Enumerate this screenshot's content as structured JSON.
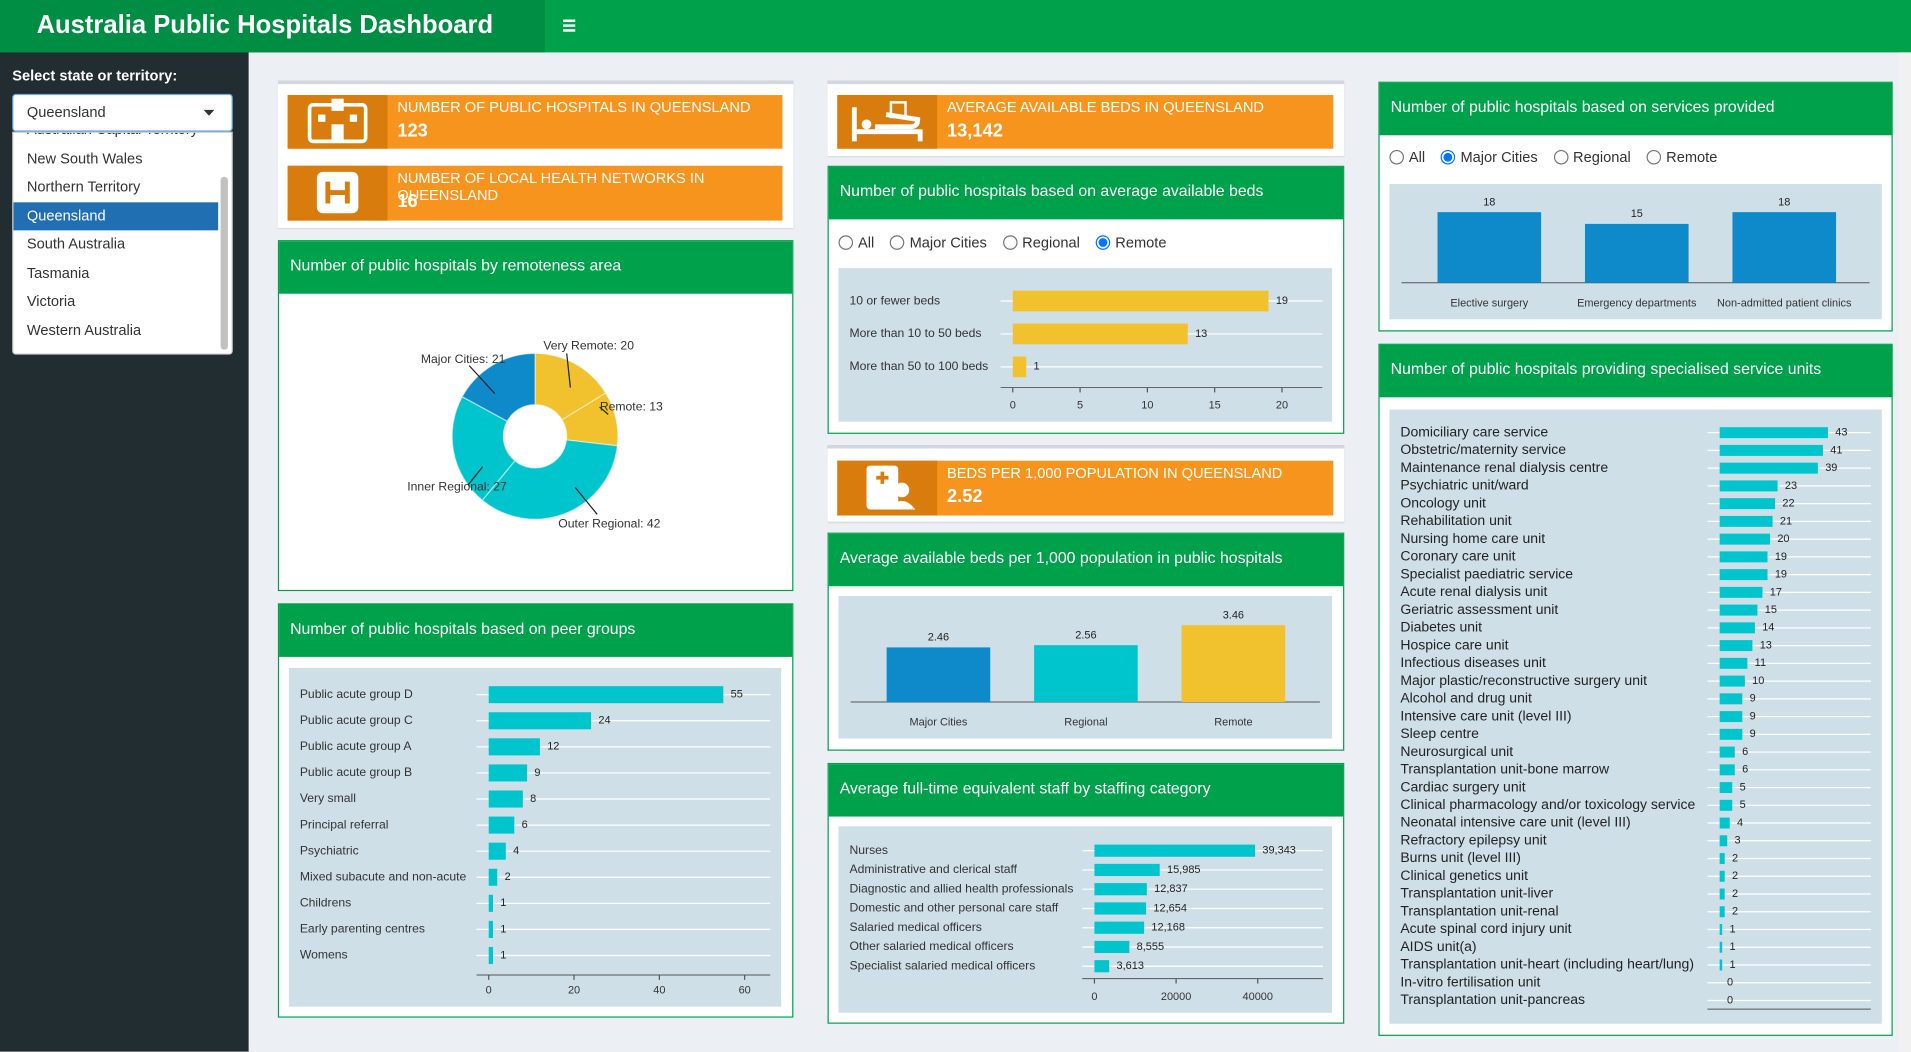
{
  "header": {
    "title": "Australia Public Hospitals Dashboard"
  },
  "sidebar": {
    "label": "Select state or territory:",
    "selected": "Queensland",
    "options": [
      "Australian Capital Territory",
      "New South Wales",
      "Northern Territory",
      "Queensland",
      "South Australia",
      "Tasmania",
      "Victoria",
      "Western Australia"
    ]
  },
  "value_boxes": [
    {
      "label": "NUMBER OF PUBLIC HOSPITALS IN QUEENSLAND",
      "value": "123"
    },
    {
      "label": "NUMBER OF LOCAL HEALTH NETWORKS IN QUEENSLAND",
      "value": "16"
    },
    {
      "label": "AVERAGE AVAILABLE BEDS IN QUEENSLAND",
      "value": "13,142"
    },
    {
      "label": "BEDS PER 1,000 POPULATION IN QUEENSLAND",
      "value": "2.52"
    }
  ],
  "chart_data": [
    {
      "type": "donut",
      "title": "Number of public hospitals by remoteness area",
      "categories": [
        "Very Remote",
        "Remote",
        "Outer Regional",
        "Inner Regional",
        "Major Cities"
      ],
      "values": [
        20,
        13,
        42,
        27,
        21
      ],
      "value_labels": [
        "Very Remote: 20",
        "Remote: 13",
        "Outer Regional: 42",
        "Inner Regional: 27",
        "Major Cities: 21"
      ],
      "colors": [
        "#f2c12e",
        "#f2c12e",
        "#00c5cd",
        "#00c5cd",
        "#0e8acb"
      ]
    },
    {
      "type": "hbar",
      "title": "Number of public hospitals based on peer groups",
      "categories": [
        "Public acute group D",
        "Public acute group C",
        "Public acute group A",
        "Public acute group B",
        "Very small",
        "Principal referral",
        "Psychiatric",
        "Mixed subacute and non-acute",
        "Childrens",
        "Early parenting centres",
        "Womens"
      ],
      "values": [
        55,
        24,
        12,
        9,
        8,
        6,
        4,
        2,
        1,
        1,
        1
      ],
      "color": "#00c5cd",
      "xlim": [
        0,
        66
      ],
      "xticks": [
        0,
        20,
        40,
        60
      ]
    },
    {
      "type": "hbar",
      "title": "Number of public hospitals based on average available beds",
      "options": [
        "All",
        "Major Cities",
        "Regional",
        "Remote"
      ],
      "selected_option": "Remote",
      "categories": [
        "10 or fewer beds",
        "More than 10 to 50 beds",
        "More than 50 to 100 beds"
      ],
      "values": [
        19,
        13,
        1
      ],
      "color": "#f2c12e",
      "xlim": [
        0,
        23
      ],
      "xticks": [
        0,
        5,
        10,
        15,
        20
      ]
    },
    {
      "type": "vbar",
      "title": "Average available beds per 1,000 population in public hospitals",
      "categories": [
        "Major Cities",
        "Regional",
        "Remote"
      ],
      "values": [
        2.46,
        2.56,
        3.46
      ],
      "colors": [
        "#0e8acb",
        "#00c5cd",
        "#f2c12e"
      ],
      "ylim": [
        0,
        4.3
      ]
    },
    {
      "type": "hbar",
      "title": "Average full-time equivalent staff by staffing category",
      "categories": [
        "Nurses",
        "Administrative and clerical staff",
        "Diagnostic and allied health professionals",
        "Domestic and other personal care staff",
        "Salaried medical officers",
        "Other salaried medical officers",
        "Specialist salaried medical officers"
      ],
      "values": [
        39343,
        15985,
        12837,
        12654,
        12168,
        8555,
        3613
      ],
      "value_labels": [
        "39,343",
        "15,985",
        "12,837",
        "12,654",
        "12,168",
        "8,555",
        "3,613"
      ],
      "color": "#00c5cd",
      "xlim": [
        0,
        56000
      ],
      "xticks": [
        0,
        20000,
        40000
      ]
    },
    {
      "type": "vbar",
      "title": "Number of public hospitals based on services provided",
      "options": [
        "All",
        "Major Cities",
        "Regional",
        "Remote"
      ],
      "selected_option": "Major Cities",
      "categories": [
        "Elective surgery",
        "Emergency departments",
        "Non-admitted patient clinics"
      ],
      "values": [
        18,
        15,
        18
      ],
      "colors": [
        "#0e8acb",
        "#0e8acb",
        "#0e8acb"
      ],
      "ylim": [
        0,
        23.3
      ]
    },
    {
      "type": "hbar",
      "title": "Number of public hospitals providing specialised service units",
      "categories": [
        "Domiciliary care service",
        "Obstetric/maternity service",
        "Maintenance renal dialysis centre",
        "Psychiatric unit/ward",
        "Oncology unit",
        "Rehabilitation unit",
        "Nursing home care unit",
        "Coronary care unit",
        "Specialist paediatric service",
        "Acute renal dialysis unit",
        "Geriatric assessment unit",
        "Diabetes unit",
        "Hospice care unit",
        "Infectious diseases unit",
        "Major plastic/reconstructive surgery unit",
        "Alcohol and drug unit",
        "Intensive care unit (level III)",
        "Sleep centre",
        "Neurosurgical unit",
        "Transplantation unit-bone marrow",
        "Cardiac surgery unit",
        "Clinical pharmacology and/or toxicology service",
        "Neonatal intensive care unit (level III)",
        "Refractory epilepsy unit",
        "Burns unit (level III)",
        "Clinical genetics unit",
        "Transplantation unit-liver",
        "Transplantation unit-renal",
        "Acute spinal cord injury unit",
        "AIDS unit(a)",
        "Transplantation unit-heart (including heart/lung)",
        "In-vitro fertilisation unit",
        "Transplantation unit-pancreas"
      ],
      "values": [
        43,
        41,
        39,
        23,
        22,
        21,
        20,
        19,
        19,
        17,
        15,
        14,
        13,
        11,
        10,
        9,
        9,
        9,
        6,
        6,
        5,
        5,
        4,
        3,
        2,
        2,
        2,
        2,
        1,
        1,
        1,
        0,
        0
      ],
      "color": "#00c5cd",
      "xlim": [
        0,
        60
      ]
    }
  ]
}
